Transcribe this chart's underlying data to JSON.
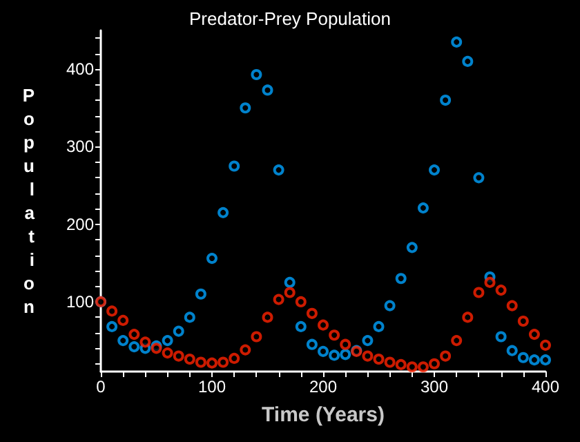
{
  "chart_data": {
    "type": "scatter",
    "title": "Predator-Prey Population",
    "xlabel": "Time (Years)",
    "ylabel": "Population",
    "x": [
      0,
      10,
      20,
      30,
      40,
      50,
      60,
      70,
      80,
      90,
      100,
      110,
      120,
      130,
      140,
      150,
      160,
      170,
      180,
      190,
      200,
      210,
      220,
      230,
      240,
      250,
      260,
      270,
      280,
      290,
      300,
      310,
      320,
      330,
      340,
      350,
      360,
      370,
      380,
      390,
      400
    ],
    "series": [
      {
        "color": "#00a2ff",
        "values": [
          100,
          68,
          50,
          42,
          40,
          43,
          50,
          62,
          80,
          110,
          156,
          215,
          275,
          350,
          393,
          373,
          270,
          125,
          68,
          45,
          36,
          31,
          32,
          37,
          50,
          68,
          95,
          130,
          170,
          221,
          270,
          360,
          435,
          410,
          260,
          132,
          55,
          37,
          28,
          25,
          25
        ]
      },
      {
        "color": "#ff2200",
        "values": [
          100,
          88,
          76,
          58,
          48,
          40,
          34,
          30,
          26,
          22,
          21,
          22,
          27,
          38,
          55,
          80,
          103,
          112,
          100,
          85,
          70,
          57,
          45,
          36,
          30,
          26,
          22,
          19,
          16,
          16,
          20,
          30,
          50,
          80,
          112,
          125,
          115,
          95,
          75,
          58,
          44
        ]
      }
    ],
    "xlim": [
      0,
      400
    ],
    "ylim": [
      10,
      450
    ],
    "xticks": [
      0,
      {
        "value": 20,
        "label": null
      },
      {
        "value": 40,
        "label": null
      },
      {
        "value": 60,
        "label": null
      },
      {
        "value": 80,
        "label": null
      },
      100,
      {
        "value": 120,
        "label": null
      },
      {
        "value": 140,
        "label": null
      },
      {
        "value": 160,
        "label": null
      },
      {
        "value": 180,
        "label": null
      },
      200,
      {
        "value": 220,
        "label": null
      },
      {
        "value": 240,
        "label": null
      },
      {
        "value": 260,
        "label": null
      },
      {
        "value": 280,
        "label": null
      },
      300,
      {
        "value": 320,
        "label": null
      },
      {
        "value": 340,
        "label": null
      },
      {
        "value": 360,
        "label": null
      },
      {
        "value": 380,
        "label": null
      },
      400
    ],
    "yticks": [
      {
        "value": 20,
        "label": null
      },
      {
        "value": 40,
        "label": null
      },
      {
        "value": 60,
        "label": null
      },
      {
        "value": 80,
        "label": null
      },
      100,
      {
        "value": 120,
        "label": null
      },
      {
        "value": 140,
        "label": null
      },
      {
        "value": 160,
        "label": null
      },
      {
        "value": 180,
        "label": null
      },
      200,
      {
        "value": 220,
        "label": null
      },
      {
        "value": 240,
        "label": null
      },
      {
        "value": 260,
        "label": null
      },
      {
        "value": 280,
        "label": null
      },
      300,
      {
        "value": 320,
        "label": null
      },
      {
        "value": 340,
        "label": null
      },
      {
        "value": 360,
        "label": null
      },
      {
        "value": 380,
        "label": null
      },
      400,
      {
        "value": 420,
        "label": null
      },
      {
        "value": 440,
        "label": null
      }
    ],
    "marker": "circle",
    "grid": false
  }
}
